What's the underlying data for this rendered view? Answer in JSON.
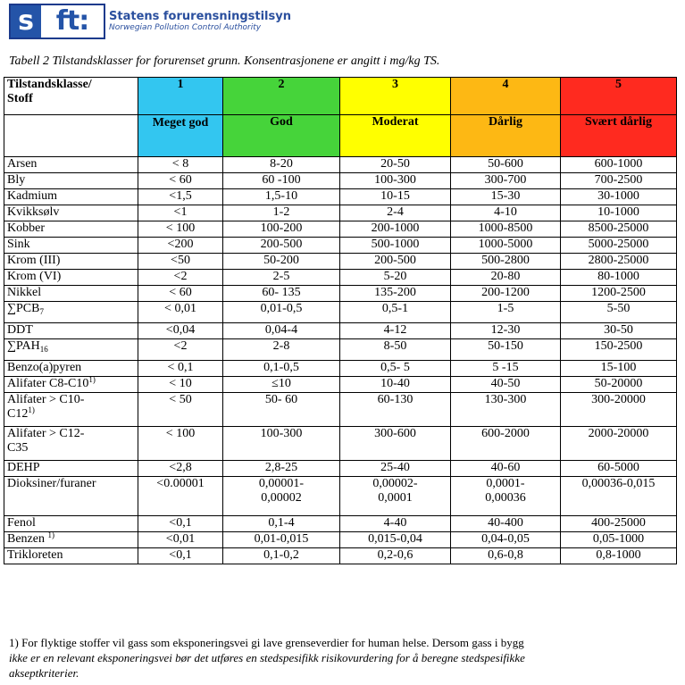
{
  "header": {
    "logo_s": "s",
    "logo_ft": "ft:",
    "name": "Statens forurensningstilsyn",
    "subtitle": "Norwegian Pollution Control Authority"
  },
  "caption": "Tabell 2 Tilstandsklasser for forurenset grunn. Konsentrasjonene er angitt i mg/kg TS.",
  "table": {
    "corner_label_line1": "Tilstandsklasse/",
    "corner_label_line2": "Stoff",
    "class_numbers": [
      "1",
      "2",
      "3",
      "4",
      "5"
    ],
    "class_names": [
      "Meget god",
      "God",
      "Moderat",
      "Dårlig",
      "Svært dårlig"
    ],
    "colors": {
      "1": "#33c6f0",
      "2": "#46d43a",
      "3": "#ffff00",
      "4": "#fdb814",
      "5": "#ff2a1f"
    },
    "rows": [
      {
        "name": "Arsen",
        "v": [
          "< 8",
          "8-20",
          "20-50",
          "50-600",
          "600-1000"
        ]
      },
      {
        "name": "Bly",
        "v": [
          "< 60",
          "60 -100",
          "100-300",
          "300-700",
          "700-2500"
        ]
      },
      {
        "name": "Kadmium",
        "v": [
          "<1,5",
          "1,5-10",
          "10-15",
          "15-30",
          "30-1000"
        ]
      },
      {
        "name": "Kvikksølv",
        "v": [
          "<1",
          "1-2",
          "2-4",
          "4-10",
          "10-1000"
        ]
      },
      {
        "name": "Kobber",
        "v": [
          "< 100",
          "100-200",
          "200-1000",
          "1000-8500",
          "8500-25000"
        ]
      },
      {
        "name": "Sink",
        "v": [
          "<200",
          "200-500",
          "500-1000",
          "1000-5000",
          "5000-25000"
        ]
      },
      {
        "name": "Krom (III)",
        "v": [
          "<50",
          "50-200",
          "200-500",
          "500-2800",
          "2800-25000"
        ]
      },
      {
        "name": "Krom (VI)",
        "v": [
          "<2",
          "2-5",
          "5-20",
          "20-80",
          "80-1000"
        ]
      },
      {
        "name": "Nikkel",
        "v": [
          "< 60",
          "60- 135",
          "135-200",
          "200-1200",
          "1200-2500"
        ]
      },
      {
        "name": "∑PCB",
        "sub": "7",
        "v": [
          "< 0,01",
          "0,01-0,5",
          "0,5-1",
          "1-5",
          "5-50"
        ]
      },
      {
        "name": "DDT",
        "v": [
          "<0,04",
          "0,04-4",
          "4-12",
          "12-30",
          "30-50"
        ]
      },
      {
        "name": "∑PAH",
        "sub": "16",
        "v": [
          "<2",
          "2-8",
          "8-50",
          "50-150",
          "150-2500"
        ]
      },
      {
        "name": "Benzo(a)pyren",
        "v": [
          "< 0,1",
          "0,1-0,5",
          "0,5- 5",
          "5 -15",
          "15-100"
        ]
      },
      {
        "name": "Alifater C8-C10",
        "sup": "1)",
        "v": [
          "< 10",
          "≤10",
          "10-40",
          "40-50",
          "50-20000"
        ]
      },
      {
        "name": "Alifater > C10-",
        "name2": "C12",
        "sup2": "1)",
        "v": [
          "< 50",
          "50- 60",
          "60-130",
          "130-300",
          "300-20000"
        ]
      },
      {
        "name": "Alifater > C12-",
        "name2": "C35",
        "v": [
          "< 100",
          "100-300",
          "300-600",
          "600-2000",
          "2000-20000"
        ]
      },
      {
        "name": "DEHP",
        "v": [
          "<2,8",
          "2,8-25",
          "25-40",
          "40-60",
          "60-5000"
        ]
      },
      {
        "name": "Dioksiner/furaner",
        "v": [
          "<0.00001",
          "0,00001-",
          "0,00002-",
          "0,0001-",
          "0,00036-0,015"
        ],
        "v2": [
          "",
          "0,00002",
          "0,0001",
          "0,00036",
          ""
        ]
      },
      {
        "name": "Fenol",
        "v": [
          "<0,1",
          "0,1-4",
          "4-40",
          "40-400",
          "400-25000"
        ]
      },
      {
        "name": "Benzen ",
        "sup": "1)",
        "v": [
          "<0,01",
          "0,01-0,015",
          "0,015-0,04",
          "0,04-0,05",
          "0,05-1000"
        ]
      },
      {
        "name": "Trikloreten",
        "v": [
          "<0,1",
          "0,1-0,2",
          "0,2-0,6",
          "0,6-0,8",
          "0,8-1000"
        ]
      }
    ]
  },
  "footnote": {
    "line1": "1) For flyktige stoffer vil gass som eksponeringsvei gi lave grenseverdier for human helse. Dersom gass i bygg",
    "line2": "ikke er en relevant eksponeringsvei bør det utføres en stedspesifikk risikovurdering for å beregne stedspesifikke",
    "line3": "akseptkriterier."
  }
}
